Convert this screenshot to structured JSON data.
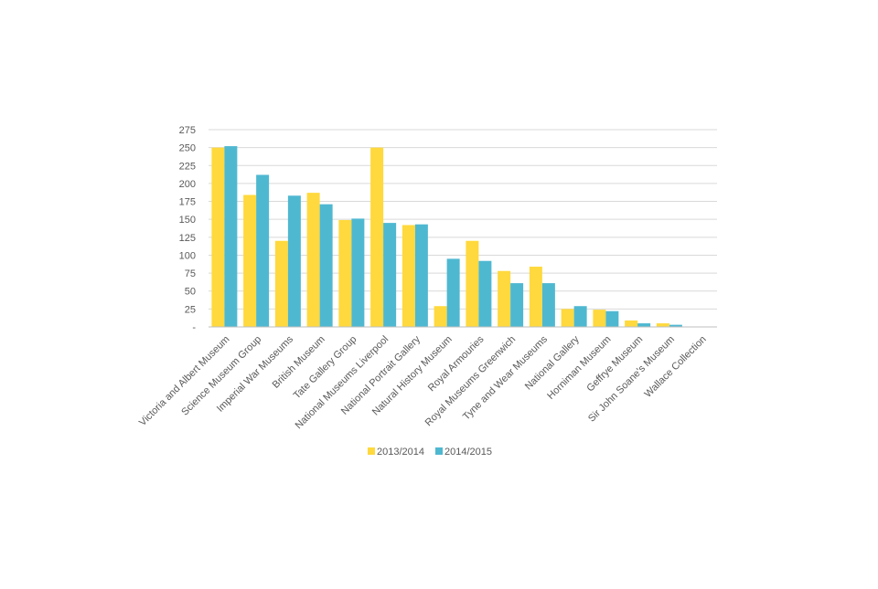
{
  "chart_data": {
    "type": "bar",
    "categories": [
      "Victoria and Albert Museum",
      "Science Museum Group",
      "Imperial War Museums",
      "British Museum",
      "Tate Gallery Group",
      "National Museums Liverpool",
      "National Portrait Gallery",
      "Natural History Museum",
      "Royal Armouries",
      "Royal Museums Greenwich",
      "Tyne and Wear Museums",
      "National Gallery",
      "Horniman Museum",
      "Geffrye Museum",
      "Sir John Soane's Museum",
      "Wallace Collection"
    ],
    "series": [
      {
        "name": "2013/2014",
        "color": "#FFD93D",
        "values": [
          250,
          184,
          120,
          187,
          149,
          250,
          142,
          29,
          120,
          78,
          84,
          25,
          24,
          9,
          5,
          0
        ]
      },
      {
        "name": "2014/2015",
        "color": "#4FB8D1",
        "values": [
          252,
          212,
          183,
          171,
          151,
          145,
          143,
          95,
          92,
          61,
          61,
          29,
          22,
          5,
          3,
          0
        ]
      }
    ],
    "yticks": [
      "-",
      "25",
      "50",
      "75",
      "100",
      "125",
      "150",
      "175",
      "200",
      "225",
      "250",
      "275"
    ],
    "ylim": [
      0,
      275
    ],
    "ystep": 25,
    "grid": true,
    "legend_position": "bottom",
    "title": "",
    "xlabel": "",
    "ylabel": "",
    "colors": {
      "grid": "#D9D9D9",
      "axis": "#BFBFBF",
      "text": "#595959"
    }
  }
}
